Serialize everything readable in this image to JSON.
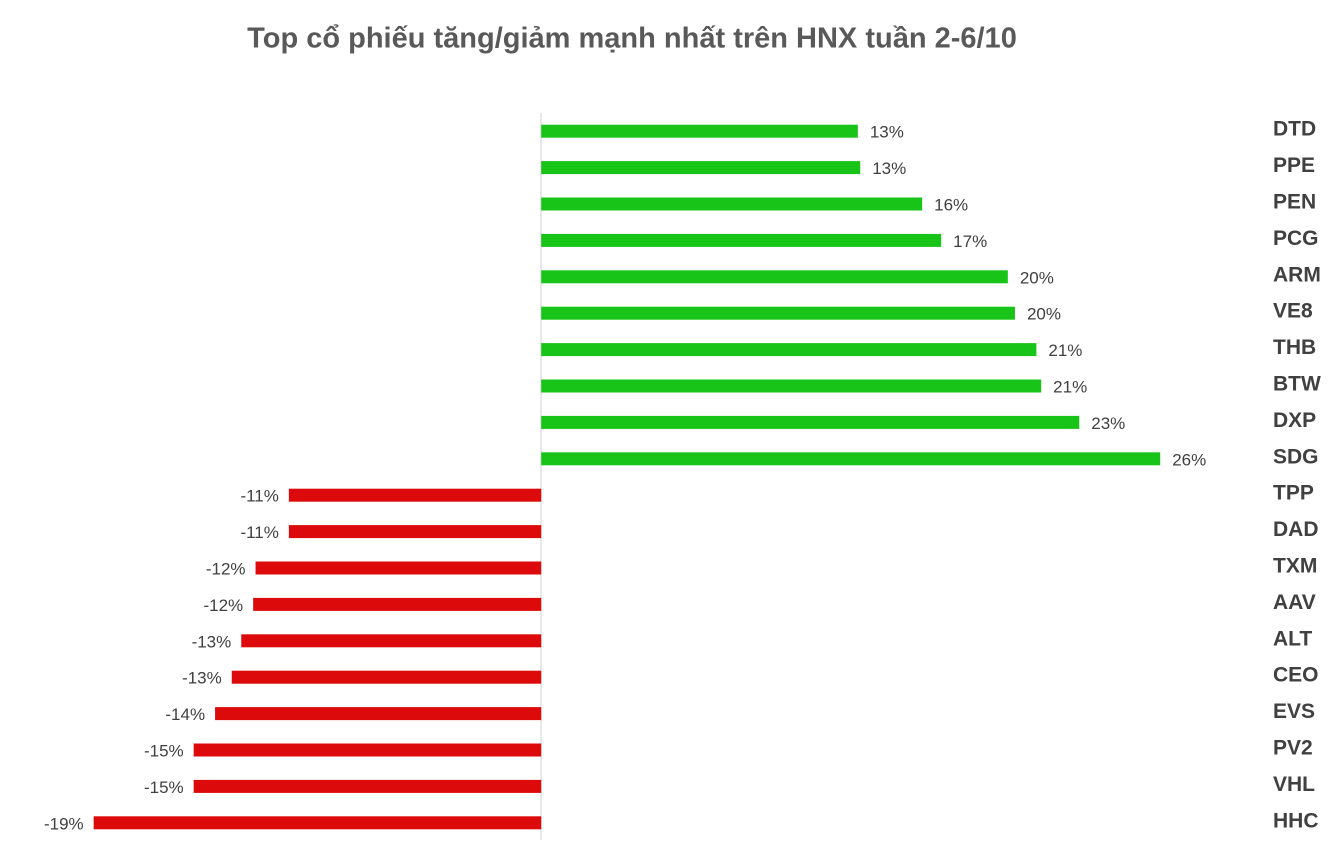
{
  "chart_data": {
    "type": "bar",
    "orientation": "horizontal",
    "title": "Top cổ phiếu tăng/giảm mạnh nhất trên HNX tuần 2-6/10",
    "categories": [
      "DTD",
      "PPE",
      "PEN",
      "PCG",
      "ARM",
      "VE8",
      "THB",
      "BTW",
      "DXP",
      "SDG",
      "TPP",
      "DAD",
      "TXM",
      "AAV",
      "ALT",
      "CEO",
      "EVS",
      "PV2",
      "VHL",
      "HHC"
    ],
    "values": [
      13.3,
      13.4,
      16.0,
      16.8,
      19.6,
      19.9,
      20.8,
      21.0,
      22.6,
      26.0,
      -10.6,
      -10.6,
      -12.0,
      -12.1,
      -12.6,
      -13.0,
      -13.7,
      -14.6,
      -14.6,
      -18.8
    ],
    "value_labels": [
      "13%",
      "13%",
      "16%",
      "17%",
      "20%",
      "20%",
      "21%",
      "21%",
      "23%",
      "26%",
      "-11%",
      "-11%",
      "-12%",
      "-12%",
      "-13%",
      "-13%",
      "-14%",
      "-15%",
      "-15%",
      "-19%"
    ],
    "positive_color": "#19c419",
    "negative_color": "#dc0a0a",
    "xlim": [
      -19.5,
      27
    ]
  }
}
